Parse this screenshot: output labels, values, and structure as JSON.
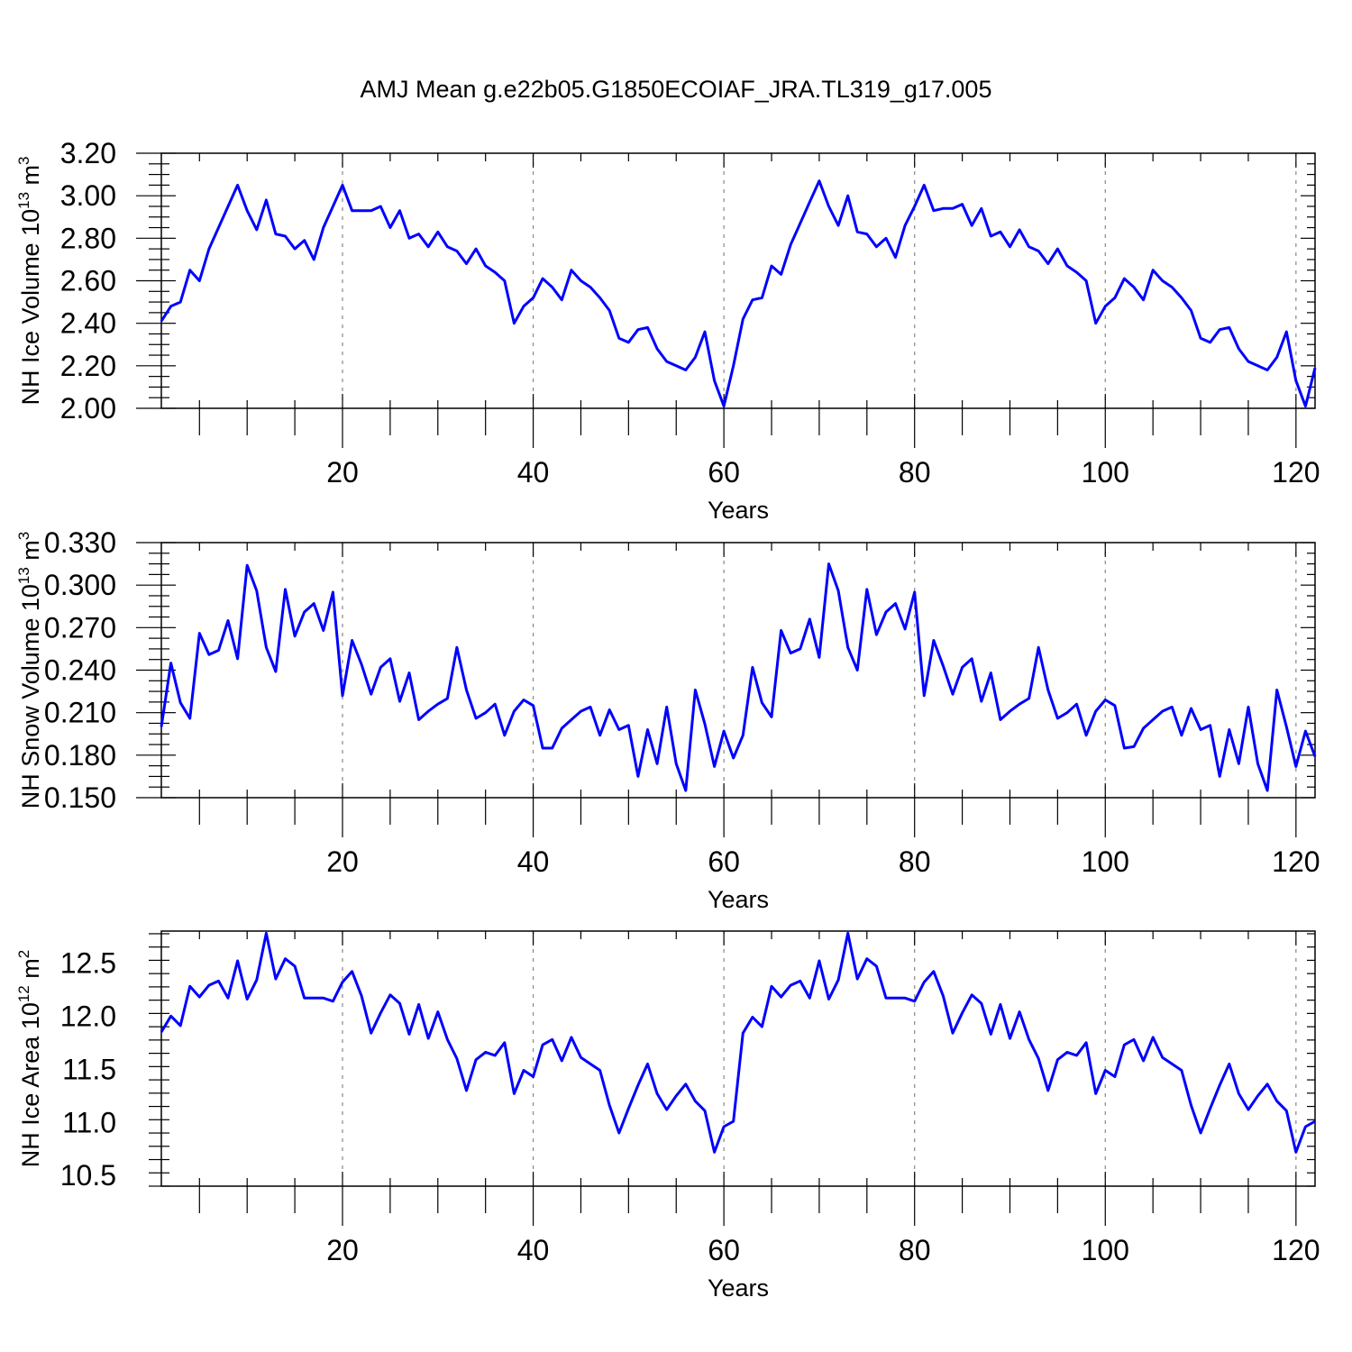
{
  "figure": {
    "title": "AMJ Mean g.e22b05.G1850ECOIAF_JRA.TL319_g17.005",
    "line_color": "#0000ff",
    "grid_color": "#888888"
  },
  "chart_data": [
    {
      "type": "line",
      "panel": "ice-volume",
      "xlabel": "Years",
      "ylabel_main": "NH Ice Volume 10",
      "ylabel_exp": "13",
      "ylabel_unit": " m",
      "ylabel_unit_exp": "3",
      "xlim": [
        1,
        122
      ],
      "ylim": [
        2.0,
        3.2
      ],
      "xticks": [
        20,
        40,
        60,
        80,
        100,
        120
      ],
      "yticks": [
        2.0,
        2.2,
        2.4,
        2.6,
        2.8,
        3.0,
        3.2
      ],
      "ytick_labels": [
        "2.00",
        "2.20",
        "2.40",
        "2.60",
        "2.80",
        "3.00",
        "3.20"
      ],
      "grid_x": [
        20,
        40,
        60,
        80,
        100,
        120
      ],
      "series": [
        {
          "name": "NH Ice Volume",
          "values": [
            2.41,
            2.48,
            2.5,
            2.65,
            2.6,
            2.75,
            2.85,
            2.95,
            3.05,
            2.93,
            2.84,
            2.98,
            2.82,
            2.81,
            2.75,
            2.79,
            2.7,
            2.85,
            2.95,
            3.05,
            2.93,
            2.93,
            2.93,
            2.95,
            2.85,
            2.93,
            2.8,
            2.82,
            2.76,
            2.83,
            2.76,
            2.74,
            2.68,
            2.75,
            2.67,
            2.64,
            2.6,
            2.4,
            2.48,
            2.52,
            2.61,
            2.57,
            2.51,
            2.65,
            2.6,
            2.57,
            2.52,
            2.46,
            2.33,
            2.31,
            2.37,
            2.38,
            2.28,
            2.22,
            2.2,
            2.18,
            2.24,
            2.36,
            2.13,
            2.01,
            2.2,
            2.42,
            2.51,
            2.52,
            2.67,
            2.63,
            2.77,
            2.87,
            2.97,
            3.07,
            2.95,
            2.86,
            3.0,
            2.83,
            2.82,
            2.76,
            2.8,
            2.71,
            2.86,
            2.95,
            3.05,
            2.93,
            2.94,
            2.94,
            2.96,
            2.86,
            2.94,
            2.81,
            2.83,
            2.76,
            2.84,
            2.76,
            2.74,
            2.68,
            2.75,
            2.67,
            2.64,
            2.6,
            2.4,
            2.48,
            2.52,
            2.61,
            2.57,
            2.51,
            2.65,
            2.6,
            2.57,
            2.52,
            2.46,
            2.33,
            2.31,
            2.37,
            2.38,
            2.28,
            2.22,
            2.2,
            2.18,
            2.24,
            2.36,
            2.13,
            2.01,
            2.19
          ]
        }
      ]
    },
    {
      "type": "line",
      "panel": "snow-volume",
      "xlabel": "Years",
      "ylabel_main": "NH Snow Volume 10",
      "ylabel_exp": "13",
      "ylabel_unit": " m",
      "ylabel_unit_exp": "3",
      "xlim": [
        1,
        122
      ],
      "ylim": [
        0.15,
        0.33
      ],
      "xticks": [
        20,
        40,
        60,
        80,
        100,
        120
      ],
      "yticks": [
        0.15,
        0.18,
        0.21,
        0.24,
        0.27,
        0.3,
        0.33
      ],
      "ytick_labels": [
        "0.150",
        "0.180",
        "0.210",
        "0.240",
        "0.270",
        "0.300",
        "0.330"
      ],
      "grid_x": [
        20,
        40,
        60,
        80,
        100,
        120
      ],
      "series": [
        {
          "name": "NH Snow Volume",
          "values": [
            0.2,
            0.245,
            0.217,
            0.206,
            0.266,
            0.251,
            0.254,
            0.275,
            0.248,
            0.314,
            0.296,
            0.256,
            0.239,
            0.297,
            0.264,
            0.281,
            0.287,
            0.268,
            0.295,
            0.222,
            0.261,
            0.244,
            0.223,
            0.242,
            0.248,
            0.218,
            0.238,
            0.205,
            0.211,
            0.216,
            0.22,
            0.256,
            0.226,
            0.206,
            0.21,
            0.216,
            0.194,
            0.211,
            0.219,
            0.215,
            0.185,
            0.185,
            0.199,
            0.205,
            0.211,
            0.214,
            0.194,
            0.212,
            0.198,
            0.201,
            0.165,
            0.198,
            0.174,
            0.214,
            0.174,
            0.155,
            0.226,
            0.202,
            0.172,
            0.197,
            0.178,
            0.194,
            0.242,
            0.217,
            0.207,
            0.268,
            0.252,
            0.255,
            0.276,
            0.249,
            0.315,
            0.296,
            0.256,
            0.24,
            0.297,
            0.265,
            0.281,
            0.287,
            0.269,
            0.295,
            0.222,
            0.261,
            0.243,
            0.223,
            0.242,
            0.248,
            0.218,
            0.238,
            0.205,
            0.211,
            0.216,
            0.22,
            0.256,
            0.226,
            0.206,
            0.21,
            0.216,
            0.194,
            0.211,
            0.219,
            0.215,
            0.185,
            0.186,
            0.199,
            0.205,
            0.211,
            0.214,
            0.194,
            0.213,
            0.198,
            0.201,
            0.165,
            0.198,
            0.174,
            0.214,
            0.174,
            0.155,
            0.226,
            0.2,
            0.172,
            0.197,
            0.179
          ]
        }
      ]
    },
    {
      "type": "line",
      "panel": "ice-area",
      "xlabel": "Years",
      "ylabel_main": "NH Ice Area 10",
      "ylabel_exp": "12",
      "ylabel_unit": " m",
      "ylabel_unit_exp": "2",
      "xlim": [
        1,
        122
      ],
      "ylim": [
        10.4,
        12.8
      ],
      "xticks": [
        20,
        40,
        60,
        80,
        100,
        120
      ],
      "yticks": [
        10.5,
        11.0,
        11.5,
        12.0,
        12.5
      ],
      "ytick_labels": [
        "10.5",
        "11.0",
        "11.5",
        "12.0",
        "12.5"
      ],
      "grid_x": [
        20,
        40,
        60,
        80,
        100,
        120
      ],
      "series": [
        {
          "name": "NH Ice Area",
          "values": [
            11.85,
            12.0,
            11.91,
            12.28,
            12.18,
            12.29,
            12.33,
            12.17,
            12.52,
            12.16,
            12.34,
            12.78,
            12.35,
            12.54,
            12.47,
            12.17,
            12.17,
            12.17,
            12.14,
            12.32,
            12.42,
            12.19,
            11.84,
            12.03,
            12.2,
            12.12,
            11.83,
            12.11,
            11.79,
            12.04,
            11.78,
            11.6,
            11.3,
            11.59,
            11.66,
            11.63,
            11.75,
            11.27,
            11.49,
            11.43,
            11.73,
            11.78,
            11.58,
            11.8,
            11.61,
            11.55,
            11.49,
            11.16,
            10.9,
            11.13,
            11.35,
            11.55,
            11.27,
            11.12,
            11.25,
            11.36,
            11.2,
            11.11,
            10.72,
            10.96,
            11.01,
            11.84,
            11.99,
            11.9,
            12.28,
            12.18,
            12.29,
            12.33,
            12.17,
            12.52,
            12.16,
            12.34,
            12.78,
            12.35,
            12.54,
            12.47,
            12.17,
            12.17,
            12.17,
            12.14,
            12.32,
            12.42,
            12.19,
            11.84,
            12.03,
            12.2,
            12.12,
            11.83,
            12.11,
            11.79,
            12.04,
            11.78,
            11.6,
            11.3,
            11.59,
            11.66,
            11.63,
            11.75,
            11.27,
            11.49,
            11.43,
            11.73,
            11.78,
            11.58,
            11.8,
            11.61,
            11.55,
            11.49,
            11.16,
            10.9,
            11.13,
            11.35,
            11.55,
            11.27,
            11.12,
            11.25,
            11.36,
            11.2,
            11.11,
            10.72,
            10.96,
            11.01
          ]
        }
      ]
    }
  ]
}
